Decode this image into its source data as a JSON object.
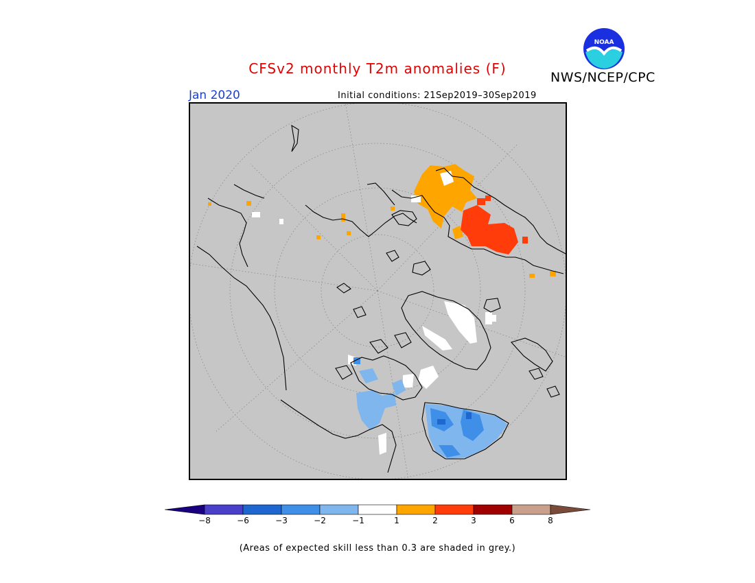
{
  "title": "CFSv2 monthly T2m anomalies (F)",
  "org_label": "NWS/NCEP/CPC",
  "logo_text": "NOAA",
  "forecast_month": "Jan 2020",
  "initial_conditions": "Initial conditions: 21Sep2019–30Sep2019",
  "footnote": "(Areas of expected skill less than 0.3 are shaded in grey.)",
  "legend": {
    "tick_labels": [
      "−8",
      "−6",
      "−3",
      "−2",
      "−1",
      "1",
      "2",
      "3",
      "6",
      "8"
    ],
    "colors": [
      "#1a0080",
      "#4a3fc8",
      "#1e66d0",
      "#3f8ee8",
      "#7fb6ee",
      "#ffffff",
      "#ffa500",
      "#ff3c0a",
      "#a00000",
      "#c8a08c",
      "#7a4a3a"
    ]
  },
  "map": {
    "projection": "north polar stereographic",
    "background_color": "#c6c6c6"
  }
}
